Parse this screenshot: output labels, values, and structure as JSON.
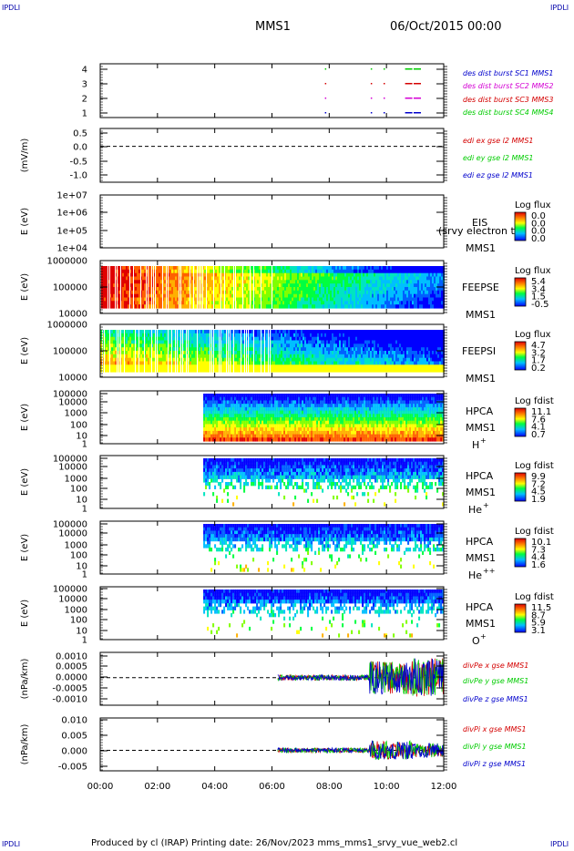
{
  "corners": {
    "tl": "IPDLI",
    "tr": "IPDLI",
    "bl": "IPDLI",
    "br": "IPDLI"
  },
  "header": {
    "spacecraft": "MMS1",
    "date": "06/Oct/2015 00:00"
  },
  "footer": "Produced by cl (IRAP)   Printing date: 26/Nov/2023   mms_mms1_srvy_vue_web2.cl",
  "chart_data": {
    "type": "multi-panel time series / spectrogram",
    "x_ticks": [
      "00:00",
      "02:00",
      "04:00",
      "06:00",
      "08:00",
      "10:00",
      "12:00"
    ],
    "xlim_hours": [
      0,
      12
    ],
    "colors": {
      "red": "#d40000",
      "magenta": "#d400d4",
      "green": "#00cc00",
      "blue": "#0000cc"
    },
    "panels": [
      {
        "id": "burst",
        "type": "availability",
        "ticks": [
          "4",
          "3",
          "2",
          "1"
        ],
        "legend": [
          {
            "text": "des dist burst SC1 MMS1",
            "color": "#0000cc"
          },
          {
            "text": "des dist burst SC2 MMS2",
            "color": "#d400d4"
          },
          {
            "text": "des dist burst SC3 MMS3",
            "color": "#d40000"
          },
          {
            "text": "des dist burst SC4 MMS4",
            "color": "#00cc00"
          }
        ],
        "bursts_hours": [
          7.85,
          9.45,
          9.9,
          10.65,
          10.95
        ]
      },
      {
        "id": "edi",
        "type": "line",
        "ylabel": "(mV/m)",
        "ticks": [
          "0.5",
          "0.0",
          "-0.5",
          "-1.0"
        ],
        "ylim": [
          -1.2,
          0.6
        ],
        "legend": [
          {
            "text": "edi ex gse l2 MMS1",
            "color": "#d40000"
          },
          {
            "text": "edi ey gse l2 MMS1",
            "color": "#00cc00"
          },
          {
            "text": "edi ez gse l2 MMS1",
            "color": "#0000cc"
          }
        ]
      },
      {
        "id": "eis",
        "type": "spectrogram",
        "ylabel": "E (eV)",
        "ticks": [
          "1e+07",
          "1e+06",
          "1e+05",
          "1e+04"
        ],
        "instrument": [
          "EIS"
        ],
        "overlay": "(srvy electron tof",
        "sc": "MMS1",
        "cb_title": "Log flux",
        "cb_ticks": [
          "0.0",
          "0.0",
          "0.0",
          "0.0"
        ]
      },
      {
        "id": "feepse",
        "type": "spectrogram",
        "ylabel": "E (eV)",
        "ticks": [
          "1000000",
          "100000",
          "10000"
        ],
        "instrument": [
          "FEEPSE"
        ],
        "sc": "MMS1",
        "cb_title": "Log flux",
        "cb_ticks": [
          "5.4",
          "3.4",
          "1.5",
          "-0.5"
        ]
      },
      {
        "id": "feepsi",
        "type": "spectrogram",
        "ylabel": "E (eV)",
        "ticks": [
          "1000000",
          "100000",
          "10000"
        ],
        "instrument": [
          "FEEPSI"
        ],
        "sc": "MMS1",
        "cb_title": "Log flux",
        "cb_ticks": [
          "4.7",
          "3.2",
          "1.7",
          "0.2"
        ]
      },
      {
        "id": "hpca_h",
        "type": "spectrogram",
        "ylabel": "E (eV)",
        "ticks": [
          "100000",
          "10000",
          "1000",
          "100",
          "10",
          "1"
        ],
        "instrument": [
          "HPCA",
          "MMS1"
        ],
        "species": "H",
        "charge": "+",
        "cb_title": "Log fdist",
        "cb_ticks": [
          "11.1",
          "7.6",
          "4.1",
          "0.7"
        ]
      },
      {
        "id": "hpca_he",
        "type": "spectrogram",
        "ylabel": "E (eV)",
        "ticks": [
          "100000",
          "10000",
          "1000",
          "100",
          "10",
          "1"
        ],
        "instrument": [
          "HPCA",
          "MMS1"
        ],
        "species": "He",
        "charge": "+",
        "cb_title": "Log fdist",
        "cb_ticks": [
          "9.9",
          "7.2",
          "4.5",
          "1.9"
        ]
      },
      {
        "id": "hpca_hepp",
        "type": "spectrogram",
        "ylabel": "E (eV)",
        "ticks": [
          "100000",
          "10000",
          "1000",
          "100",
          "10",
          "1"
        ],
        "instrument": [
          "HPCA",
          "MMS1"
        ],
        "species": "He",
        "charge": "++",
        "cb_title": "Log fdist",
        "cb_ticks": [
          "10.1",
          "7.3",
          "4.4",
          "1.6"
        ]
      },
      {
        "id": "hpca_o",
        "type": "spectrogram",
        "ylabel": "E (eV)",
        "ticks": [
          "100000",
          "10000",
          "1000",
          "100",
          "10",
          "1"
        ],
        "instrument": [
          "HPCA",
          "MMS1"
        ],
        "species": "O",
        "charge": "+",
        "cb_title": "Log fdist",
        "cb_ticks": [
          "11.5",
          "8.7",
          "5.9",
          "3.1"
        ]
      },
      {
        "id": "divpe",
        "type": "line",
        "ylabel": "(nPa/km)",
        "ticks": [
          "0.0010",
          "0.0005",
          "0.0000",
          "-0.0005",
          "-0.0010"
        ],
        "ylim": [
          -0.0012,
          0.0011
        ],
        "legend": [
          {
            "text": "divPe x gse MMS1",
            "color": "#d40000"
          },
          {
            "text": "divPe y gse MMS1",
            "color": "#00cc00"
          },
          {
            "text": "divPe z gse MMS1",
            "color": "#0000cc"
          }
        ]
      },
      {
        "id": "divpi",
        "type": "line",
        "ylabel": "(nPa/km)",
        "ticks": [
          "0.010",
          "0.005",
          "0.000",
          "-0.005"
        ],
        "ylim": [
          -0.007,
          0.011
        ],
        "legend": [
          {
            "text": "divPi x gse MMS1",
            "color": "#d40000"
          },
          {
            "text": "divPi y gse MMS1",
            "color": "#00cc00"
          },
          {
            "text": "divPi z gse MMS1",
            "color": "#0000cc"
          }
        ]
      }
    ]
  }
}
